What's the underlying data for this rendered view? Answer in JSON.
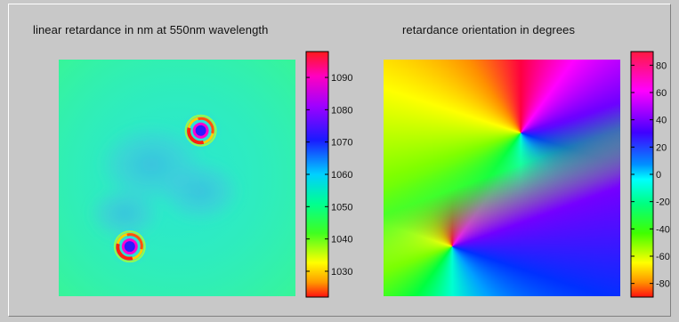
{
  "chart_data": [
    {
      "type": "heatmap",
      "title": "linear retardance in nm at 550nm wavelength",
      "xlabel": "",
      "ylabel": "",
      "colormap": "jet",
      "colorbar": {
        "min": 1022,
        "max": 1098,
        "ticks": [
          1030,
          1040,
          1050,
          1060,
          1070,
          1080,
          1090
        ]
      },
      "background_value": 1056,
      "features": [
        {
          "label": "upper defect",
          "center": [
            0.6,
            0.3
          ],
          "peak_value": 1072
        },
        {
          "label": "lower defect",
          "center": [
            0.3,
            0.79
          ],
          "peak_value": 1072
        },
        {
          "label": "central blue region",
          "value": 1063
        }
      ]
    },
    {
      "type": "heatmap",
      "title": "retardance orientation in degrees",
      "xlabel": "",
      "ylabel": "",
      "colormap": "hsv",
      "colorbar": {
        "min": -90,
        "max": 90,
        "ticks": [
          80,
          60,
          40,
          20,
          0,
          -20,
          -40,
          -60,
          -80
        ]
      },
      "singularities": [
        {
          "center": [
            0.58,
            0.31
          ]
        },
        {
          "center": [
            0.29,
            0.79
          ]
        }
      ]
    }
  ]
}
